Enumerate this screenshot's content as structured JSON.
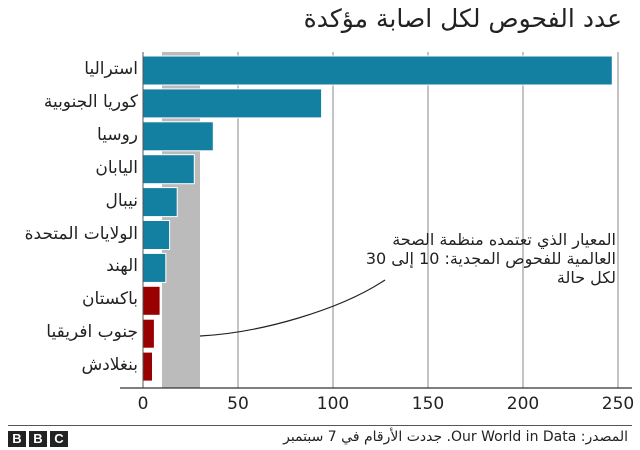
{
  "title": "عدد الفحوص لكل اصابة مؤكدة",
  "annotation": {
    "line1": "المعيار الذي تعتمده منظمة الصحة",
    "line2": "العالمية للفحوص المجدية: 10 إلى 30",
    "line3": "لكل حالة"
  },
  "footer": {
    "logo": [
      "B",
      "B",
      "C"
    ],
    "source": "المصدر: Our World in Data. جددت الأرقام في 7 سبتمبر"
  },
  "colors": {
    "blue": "#1380a1",
    "red": "#990000",
    "band": "#bbbbbc",
    "grid": "#888888"
  },
  "chart_data": {
    "type": "bar",
    "orientation": "horizontal",
    "title": "عدد الفحوص لكل اصابة مؤكدة",
    "xlabel": "",
    "ylabel": "",
    "xlim": [
      0,
      250
    ],
    "xticks": [
      0,
      50,
      100,
      150,
      200,
      250
    ],
    "grid": true,
    "categories": [
      "استراليا",
      "كوريا الجنوبية",
      "روسيا",
      "اليابان",
      "نيبال",
      "الولايات المتحدة",
      "الهند",
      "باكستان",
      "جنوب افريقيا",
      "بنغلادش"
    ],
    "values": [
      247,
      94,
      37,
      27,
      18,
      14,
      12,
      9,
      6,
      5
    ],
    "bar_colors": [
      "#1380a1",
      "#1380a1",
      "#1380a1",
      "#1380a1",
      "#1380a1",
      "#1380a1",
      "#1380a1",
      "#990000",
      "#990000",
      "#990000"
    ],
    "reference_band": {
      "from": 10,
      "to": 30,
      "label": "المعيار الذي تعتمده منظمة الصحة العالمية للفحوص المجدية: 10 إلى 30 لكل حالة"
    }
  }
}
